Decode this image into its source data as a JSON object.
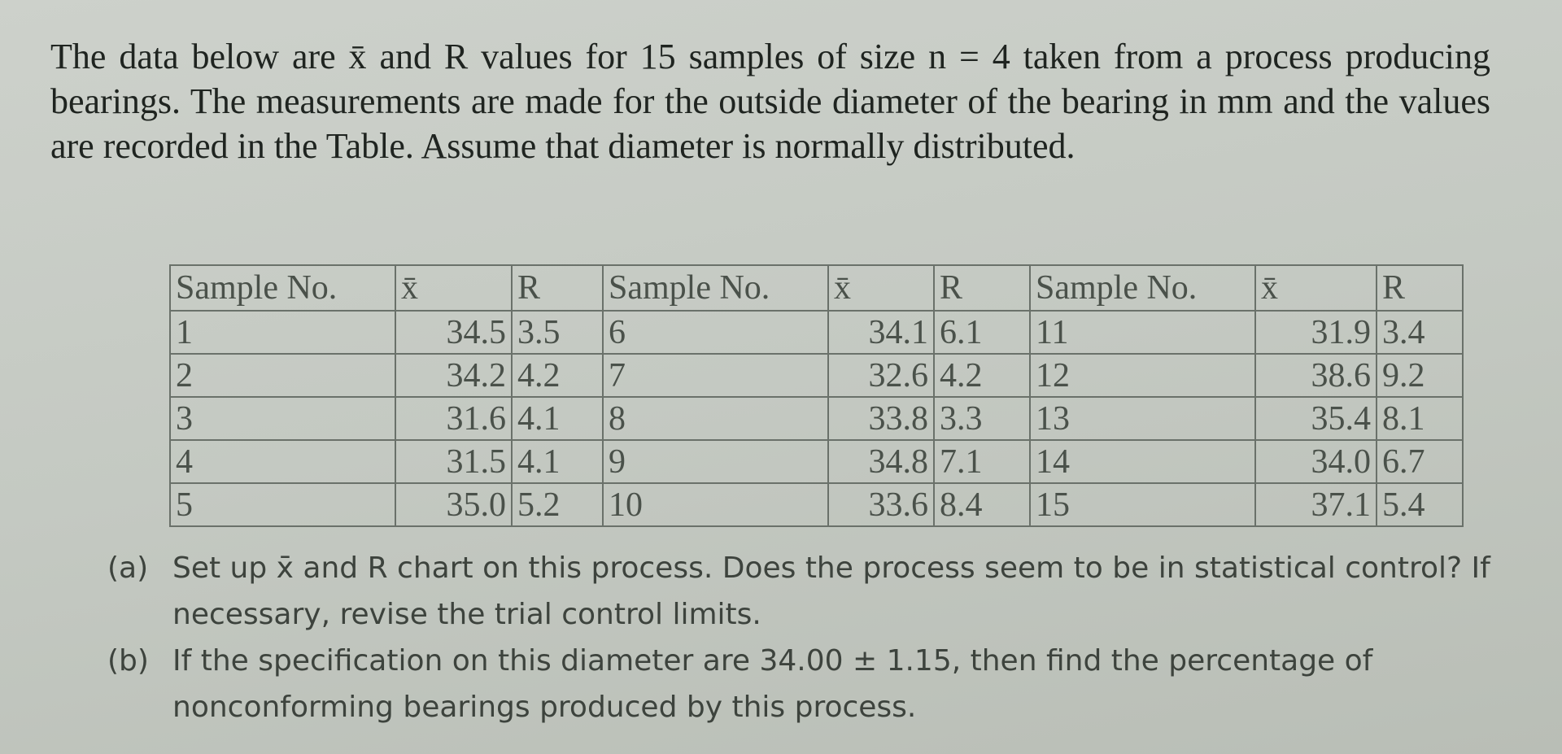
{
  "problem": {
    "intro": "The data below are x̄ and R values for 15 samples of size n = 4 taken from a process producing bearings. The measurements are made for the outside diameter of the bearing in mm and the values are recorded in the Table. Assume that diameter is normally distributed.",
    "table": {
      "header": [
        "Sample No.",
        "x̄",
        "R",
        "Sample No.",
        "x̄",
        "R",
        "Sample No.",
        "x̄",
        "R"
      ],
      "rows": [
        [
          "1",
          "34.5",
          "3.5",
          "6",
          "34.1",
          "6.1",
          "11",
          "31.9",
          "3.4"
        ],
        [
          "2",
          "34.2",
          "4.2",
          "7",
          "32.6",
          "4.2",
          "12",
          "38.6",
          "9.2"
        ],
        [
          "3",
          "31.6",
          "4.1",
          "8",
          "33.8",
          "3.3",
          "13",
          "35.4",
          "8.1"
        ],
        [
          "4",
          "31.5",
          "4.1",
          "9",
          "34.8",
          "7.1",
          "14",
          "34.0",
          "6.7"
        ],
        [
          "5",
          "35.0",
          "5.2",
          "10",
          "33.6",
          "8.4",
          "15",
          "37.1",
          "5.4"
        ]
      ]
    },
    "questions": [
      {
        "label": "(a)",
        "text": "Set up x̄ and R chart on this process. Does the process seem to be in statistical control? If necessary, revise the trial control limits."
      },
      {
        "label": "(b)",
        "text": "If the specification on this diameter are 34.00 ± 1.15, then find the percentage of nonconforming bearings produced by this process."
      }
    ]
  }
}
